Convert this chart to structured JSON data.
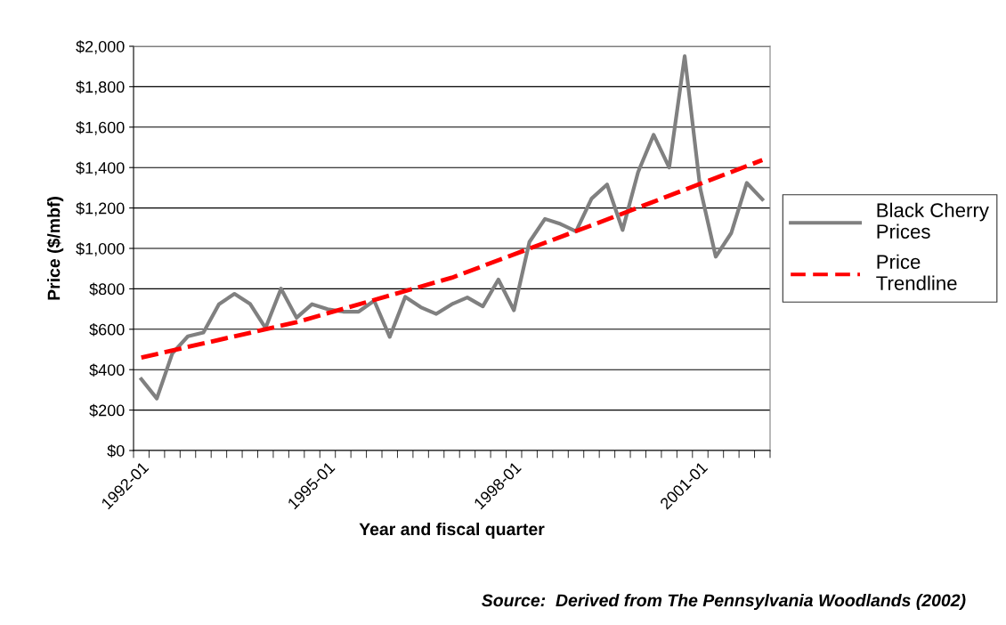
{
  "chart_data": {
    "type": "line",
    "xlabel": "Year and fiscal quarter",
    "ylabel": "Price ($/mbf)",
    "categories": [
      "1992-01",
      null,
      null,
      null,
      null,
      null,
      null,
      null,
      null,
      null,
      null,
      null,
      "1995-01",
      null,
      null,
      null,
      null,
      null,
      null,
      null,
      null,
      null,
      null,
      null,
      "1998-01",
      null,
      null,
      null,
      null,
      null,
      null,
      null,
      null,
      null,
      null,
      null,
      "2001-01",
      null,
      null,
      null,
      null
    ],
    "series": [
      {
        "name": "Black Cherry Prices",
        "color": "#808080",
        "line_style": "solid",
        "values": [
          353,
          257,
          481,
          565,
          584,
          724,
          775,
          726,
          606,
          801,
          657,
          724,
          699,
          687,
          687,
          741,
          562,
          760,
          709,
          676,
          724,
          757,
          713,
          846,
          694,
          1032,
          1146,
          1121,
          1084,
          1246,
          1316,
          1091,
          1378,
          1562,
          1400,
          1951,
          1297,
          959,
          1076,
          1324,
          1243
        ]
      },
      {
        "name": "Price Trendline",
        "color": "#ff0000",
        "line_style": "dashed",
        "values": [
          460,
          null,
          null,
          null,
          null,
          null,
          null,
          null,
          null,
          null,
          635,
          null,
          null,
          null,
          null,
          null,
          null,
          null,
          null,
          null,
          855,
          null,
          null,
          null,
          null,
          null,
          null,
          null,
          null,
          null,
          1143,
          null,
          null,
          null,
          null,
          null,
          null,
          null,
          null,
          null,
          1437
        ]
      }
    ],
    "ylim": [
      0,
      2000
    ],
    "yticks": [
      {
        "value": 0,
        "label": "$0"
      },
      {
        "value": 200,
        "label": "$200"
      },
      {
        "value": 400,
        "label": "$400"
      },
      {
        "value": 600,
        "label": "$600"
      },
      {
        "value": 800,
        "label": "$800"
      },
      {
        "value": 1000,
        "label": "$1,000"
      },
      {
        "value": 1200,
        "label": "$1,200"
      },
      {
        "value": 1400,
        "label": "$1,400"
      },
      {
        "value": 1600,
        "label": "$1,600"
      },
      {
        "value": 1800,
        "label": "$1,800"
      },
      {
        "value": 2000,
        "label": "$2,000"
      }
    ],
    "grid": "y",
    "legend": "right",
    "marker": "none",
    "annotations": [
      "Source:  Derived from The Pennsylvania Woodlands (2002)"
    ]
  }
}
